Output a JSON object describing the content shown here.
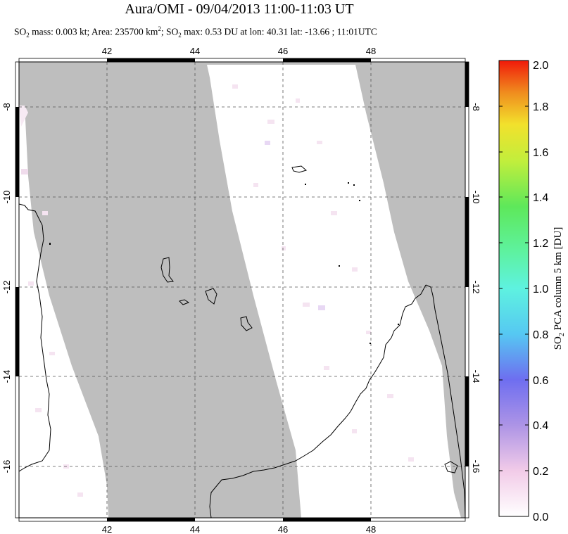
{
  "title": "Aura/OMI - 09/04/2013 11:00-11:03 UT",
  "subtitle": {
    "part1": "SO",
    "sub1": "2",
    "part2": " mass: 0.003 kt; Area: 235700 km",
    "sup1": "2",
    "part3": "; SO",
    "sub2": "2",
    "part4": " max: 0.53 DU at lon: 40.31 lat: -13.66 ; 11:01UTC"
  },
  "map": {
    "lon_range": [
      40,
      50
    ],
    "lat_range": [
      -17.2,
      -7.1
    ],
    "lon_ticks": [
      "42",
      "44",
      "46",
      "48"
    ],
    "lat_ticks": [
      "-8",
      "-10",
      "-12",
      "-14",
      "-16"
    ],
    "no_data_color": "#bebebe",
    "land_outline_color": "#000000",
    "grid": "dashed"
  },
  "colorbar": {
    "label": "SO2 PCA column 5 km [DU]",
    "label_main": "SO",
    "label_sub": "2",
    "label_rest": " PCA column 5 km [DU]",
    "ticks": [
      "0.0",
      "0.2",
      "0.4",
      "0.6",
      "0.8",
      "1.0",
      "1.2",
      "1.4",
      "1.6",
      "1.8",
      "2.0"
    ],
    "min": 0,
    "max": 2,
    "colors": [
      "#ffffff",
      "#f2cbe8",
      "#ad94e6",
      "#6e6ef0",
      "#56c8f2",
      "#5ef2a0",
      "#5ee85a",
      "#c2ee3c",
      "#f2e12c",
      "#f08c1e",
      "#f01a0a"
    ]
  }
}
